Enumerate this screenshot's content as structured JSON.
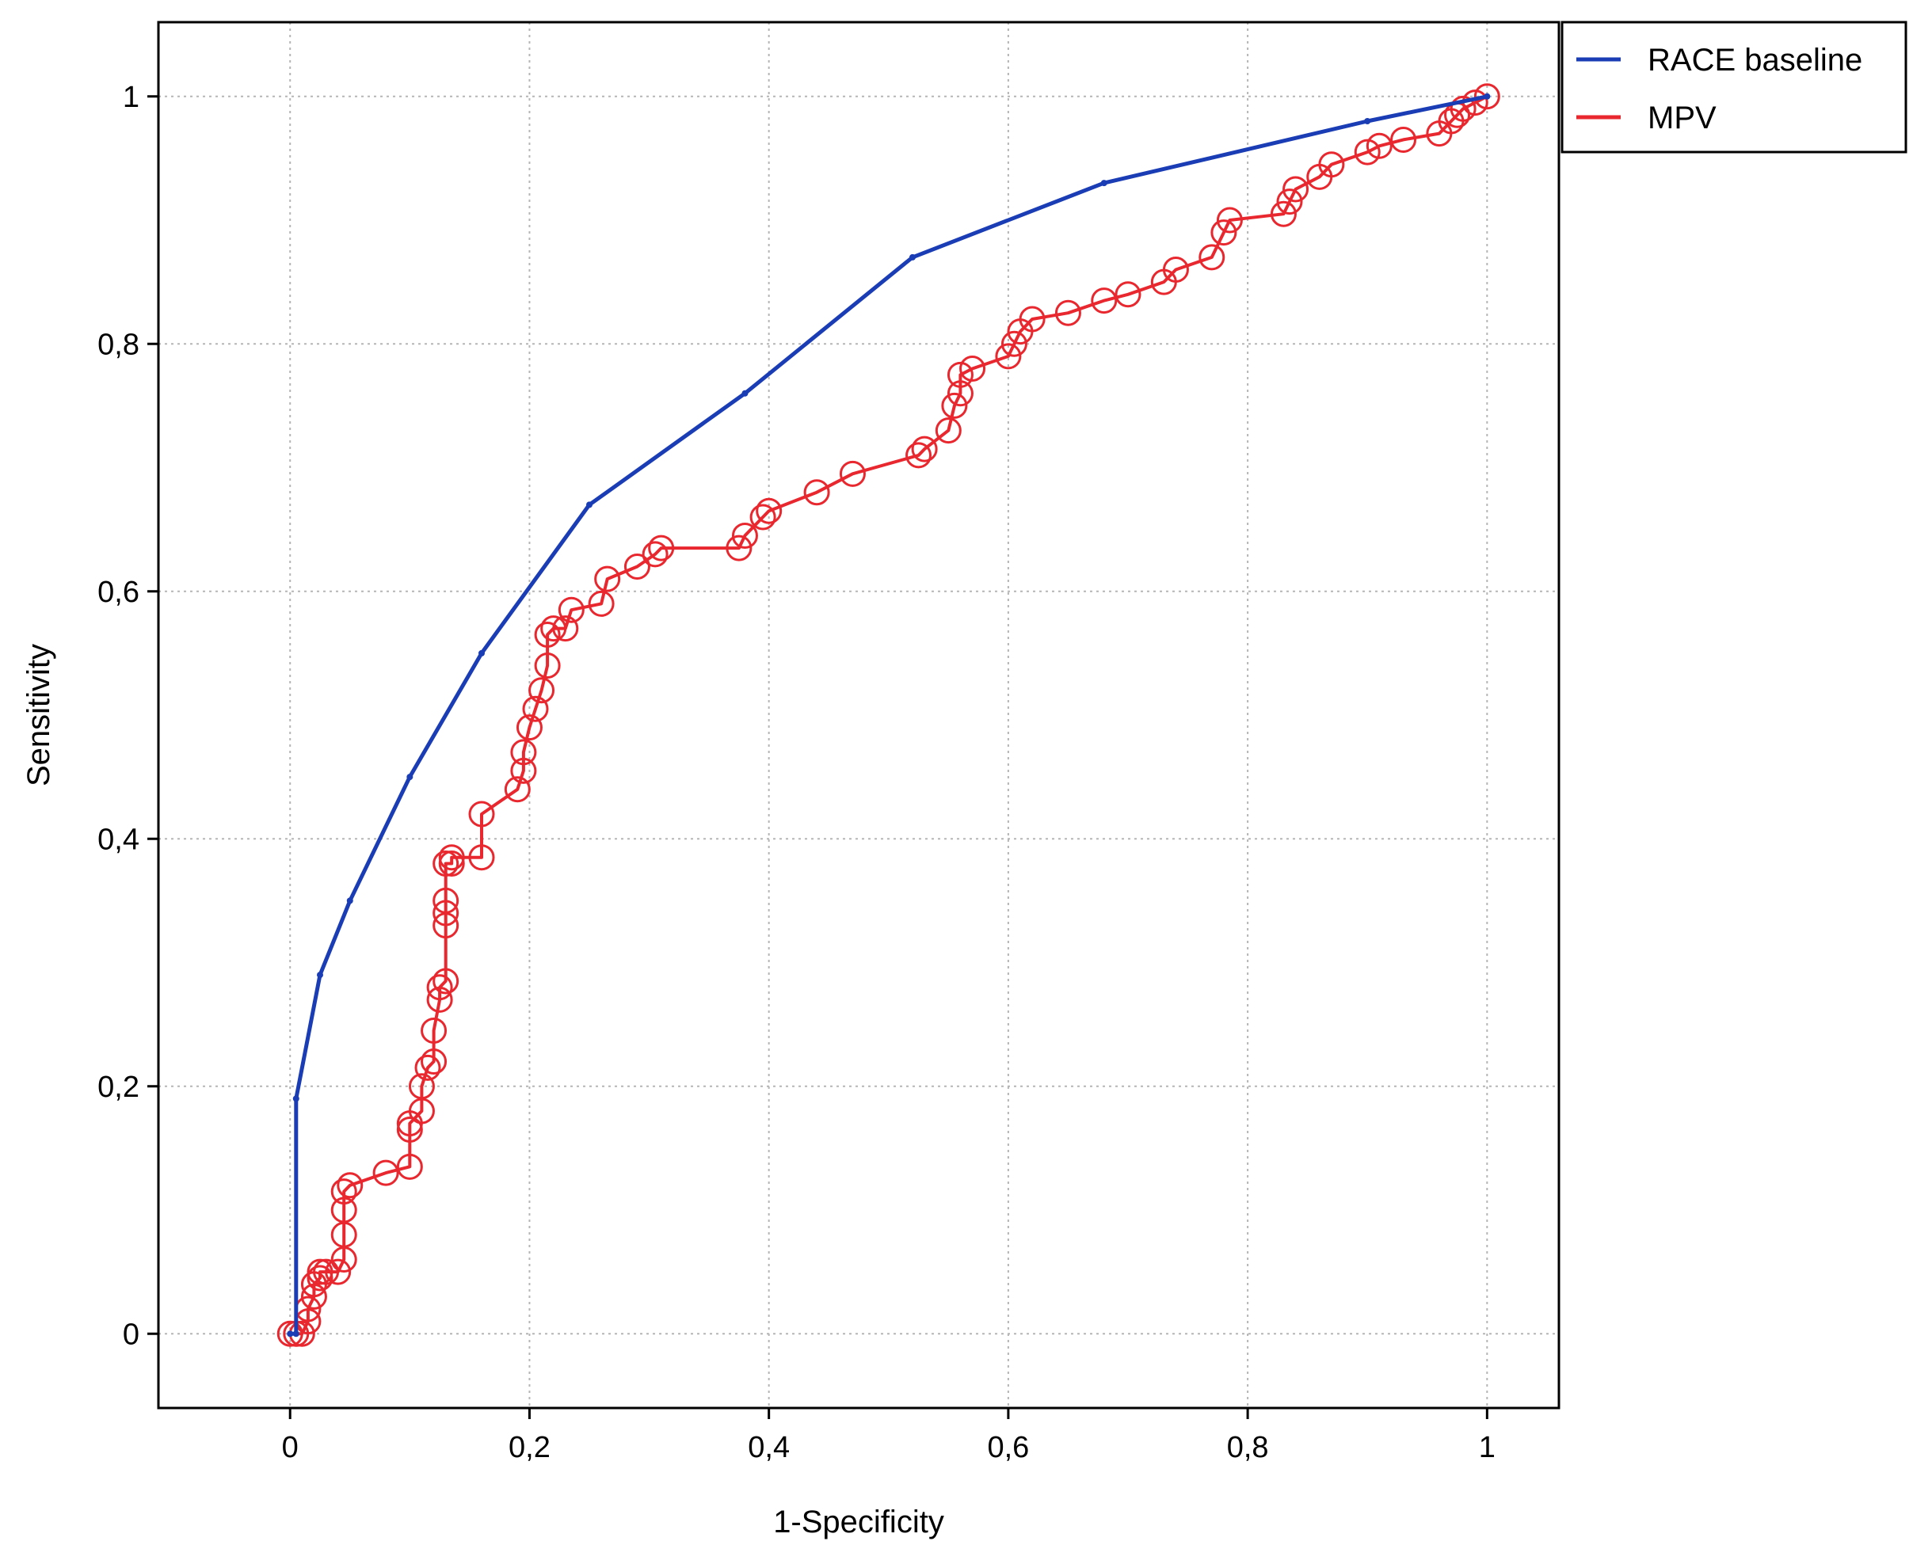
{
  "chart_data": {
    "type": "line",
    "title": "",
    "xlabel": "1-Specificity",
    "ylabel": "Sensitivity",
    "xlim": [
      -0.11,
      1.06
    ],
    "ylim": [
      -0.06,
      1.06
    ],
    "xticks": [
      0,
      0.2,
      0.4,
      0.6,
      0.8,
      1
    ],
    "xtick_labels": [
      "0",
      "0,2",
      "0,4",
      "0,6",
      "0,8",
      "1"
    ],
    "yticks": [
      0,
      0.2,
      0.4,
      0.6,
      0.8,
      1
    ],
    "ytick_labels": [
      "0",
      "0,2",
      "0,4",
      "0,6",
      "0,8",
      "1"
    ],
    "grid": true,
    "legend_position": "outside-top-right",
    "series": [
      {
        "name": "RACE baseline",
        "color": "#1a3db5",
        "marker": "dot",
        "x": [
          0,
          0.005,
          0.005,
          0.025,
          0.05,
          0.1,
          0.16,
          0.25,
          0.38,
          0.52,
          0.68,
          0.9,
          1
        ],
        "y": [
          0,
          0,
          0.19,
          0.29,
          0.35,
          0.45,
          0.55,
          0.67,
          0.76,
          0.87,
          0.93,
          0.98,
          1
        ]
      },
      {
        "name": "MPV",
        "color": "#e8282e",
        "marker": "circle",
        "x": [
          0,
          0.005,
          0.01,
          0.015,
          0.015,
          0.02,
          0.02,
          0.025,
          0.025,
          0.03,
          0.04,
          0.045,
          0.045,
          0.045,
          0.045,
          0.05,
          0.08,
          0.1,
          0.1,
          0.1,
          0.11,
          0.11,
          0.115,
          0.12,
          0.12,
          0.125,
          0.125,
          0.13,
          0.13,
          0.13,
          0.13,
          0.13,
          0.135,
          0.135,
          0.16,
          0.16,
          0.19,
          0.195,
          0.195,
          0.2,
          0.205,
          0.21,
          0.215,
          0.215,
          0.22,
          0.23,
          0.235,
          0.26,
          0.265,
          0.29,
          0.305,
          0.31,
          0.375,
          0.38,
          0.395,
          0.4,
          0.44,
          0.47,
          0.525,
          0.53,
          0.55,
          0.555,
          0.56,
          0.56,
          0.57,
          0.6,
          0.605,
          0.61,
          0.62,
          0.65,
          0.68,
          0.7,
          0.73,
          0.74,
          0.77,
          0.78,
          0.785,
          0.83,
          0.835,
          0.84,
          0.86,
          0.87,
          0.9,
          0.91,
          0.93,
          0.96,
          0.97,
          0.975,
          0.98,
          0.99,
          1
        ],
        "y": [
          0,
          0,
          0,
          0.01,
          0.02,
          0.03,
          0.04,
          0.045,
          0.05,
          0.05,
          0.05,
          0.06,
          0.08,
          0.1,
          0.115,
          0.12,
          0.13,
          0.135,
          0.165,
          0.17,
          0.18,
          0.2,
          0.215,
          0.22,
          0.245,
          0.27,
          0.28,
          0.285,
          0.33,
          0.34,
          0.35,
          0.38,
          0.38,
          0.385,
          0.385,
          0.42,
          0.44,
          0.455,
          0.47,
          0.49,
          0.505,
          0.52,
          0.54,
          0.565,
          0.57,
          0.57,
          0.585,
          0.59,
          0.61,
          0.62,
          0.63,
          0.635,
          0.635,
          0.645,
          0.66,
          0.665,
          0.68,
          0.695,
          0.71,
          0.715,
          0.73,
          0.75,
          0.76,
          0.775,
          0.78,
          0.79,
          0.8,
          0.81,
          0.82,
          0.825,
          0.835,
          0.84,
          0.85,
          0.86,
          0.87,
          0.89,
          0.9,
          0.905,
          0.915,
          0.925,
          0.935,
          0.945,
          0.955,
          0.96,
          0.965,
          0.97,
          0.98,
          0.985,
          0.99,
          0.995,
          1
        ]
      }
    ]
  }
}
